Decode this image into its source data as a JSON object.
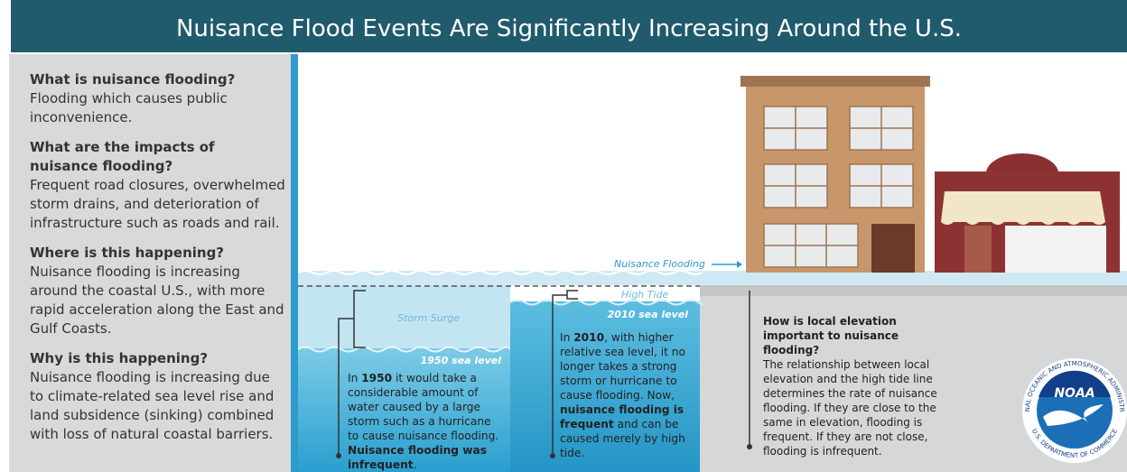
{
  "title": "Nuisance Flood Events Are Significantly Increasing Around the U.S.",
  "faq": [
    {
      "question": "What is nuisance flooding?",
      "answer": "Flooding which causes public inconvenience."
    },
    {
      "question": "What are the impacts of nuisance flooding?",
      "answer": "Frequent road closures, overwhelmed storm drains, and deterioration of infrastructure such as roads and rail."
    },
    {
      "question": "Where is this happening?",
      "answer": "Nuisance flooding is increasing around the coastal U.S., with more rapid acceleration along the East and Gulf Coasts."
    },
    {
      "question": "Why is this happening?",
      "answer": "Nuisance flooding is increasing due to climate-related sea level rise and land subsidence (sinking) combined with loss of natural coastal barriers."
    }
  ],
  "labels": {
    "nuisance_flooding": "Nuisance Flooding",
    "storm_surge": "Storm Surge",
    "high_tide": "High Tide",
    "sea_level_1950": "1950 sea level",
    "sea_level_2010": "2010 sea level"
  },
  "panels": [
    {
      "parts": [
        "In ",
        "1950",
        " it would take a considerable amount of water caused by a large storm such as a hurricane to cause nuisance flooding. ",
        "Nuisance flooding was infrequent",
        "."
      ]
    },
    {
      "parts": [
        "In ",
        "2010",
        ", with higher relative sea level, it no longer takes a strong storm or hurricane to cause flooding. Now, ",
        "nuisance flooding is frequent",
        " and can be caused merely by high tide."
      ]
    }
  ],
  "elevation": {
    "question": "How is local elevation important to nuisance flooding?",
    "answer": "The relationship between local elevation and the high tide line determines the rate of nuisance flooding. If they are close to the same in elevation, flooding is frequent. If they are not close, flooding is infrequent."
  },
  "logo": {
    "name": "NOAA",
    "ring_top": "NATIONAL OCEANIC AND ATMOSPHERIC ADMINISTRATION",
    "ring_bottom": "U.S. DEPARTMENT OF COMMERCE"
  }
}
